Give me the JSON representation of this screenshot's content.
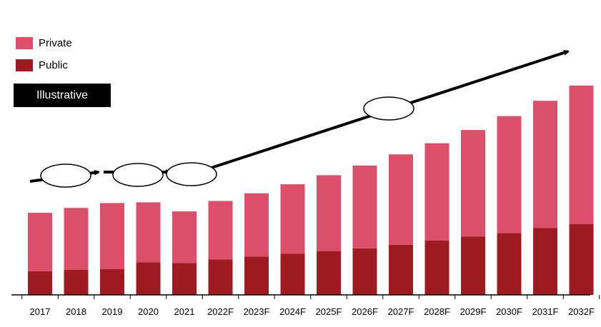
{
  "legend": {
    "private_label": "Private",
    "public_label": "Public"
  },
  "badge": {
    "text": "Illustrative"
  },
  "colors": {
    "private": "#dc4f68",
    "public": "#9e1c21",
    "arrow": "#000000"
  },
  "chart_data": {
    "type": "bar",
    "stacked": true,
    "categories": [
      "2017",
      "2018",
      "2019",
      "2020",
      "2021",
      "2022F",
      "2023F",
      "2024F",
      "2025F",
      "2026F",
      "2027F",
      "2028F",
      "2029F",
      "2030F",
      "2031F",
      "2032F"
    ],
    "series": [
      {
        "name": "Public",
        "values": [
          34,
          36,
          37,
          47,
          46,
          51,
          55,
          59,
          63,
          67,
          72,
          78,
          84,
          89,
          96,
          102
        ]
      },
      {
        "name": "Private",
        "values": [
          84,
          89,
          95,
          86,
          74,
          84,
          91,
          100,
          109,
          119,
          130,
          140,
          153,
          168,
          183,
          199
        ]
      }
    ],
    "ylim": [
      0,
      310
    ],
    "grid": false,
    "legend_position": "top-left",
    "annotations": [
      "trend arrow",
      "ellipse markers"
    ]
  }
}
